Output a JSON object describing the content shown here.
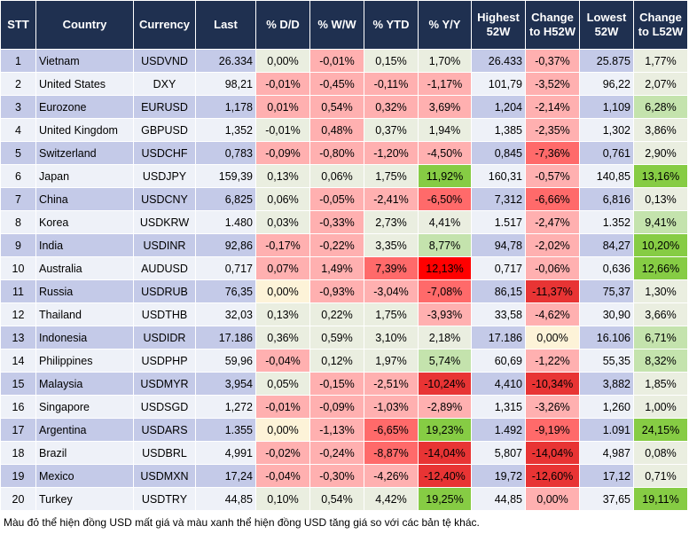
{
  "headers": [
    "STT",
    "Country",
    "Currency",
    "Last",
    "% D/D",
    "% W/W",
    "% YTD",
    "% Y/Y",
    "Highest 52W",
    "Change to H52W",
    "Lowest 52W",
    "Change to L52W"
  ],
  "colors": {
    "header": "#1f3050",
    "row_odd": "#c4cae8",
    "row_even": "#eef1f8",
    "neutral": "#eaeee0",
    "light_red": "#ffb0b0",
    "mid_red": "#ff6a6a",
    "red": "#ff0000",
    "dark_red": "#e83434",
    "light_green": "#c4e3ad",
    "green": "#86cc44",
    "light_yellow": "#fdf3d8"
  },
  "rows": [
    [
      "1",
      "Vietnam",
      "USDVND",
      "26.334",
      "0,00%",
      "-0,01%",
      "0,15%",
      "1,70%",
      "26.433",
      "-0,37%",
      "25.875",
      "1,77%"
    ],
    [
      "2",
      "United States",
      "DXY",
      "98,21",
      "-0,01%",
      "-0,45%",
      "-0,11%",
      "-1,17%",
      "101,79",
      "-3,52%",
      "96,22",
      "2,07%"
    ],
    [
      "3",
      "Eurozone",
      "EURUSD",
      "1,178",
      "0,01%",
      "0,54%",
      "0,32%",
      "3,69%",
      "1,204",
      "-2,14%",
      "1,109",
      "6,28%"
    ],
    [
      "4",
      "United Kingdom",
      "GBPUSD",
      "1,352",
      "-0,01%",
      "0,48%",
      "0,37%",
      "1,94%",
      "1,385",
      "-2,35%",
      "1,302",
      "3,86%"
    ],
    [
      "5",
      "Switzerland",
      "USDCHF",
      "0,783",
      "-0,09%",
      "-0,80%",
      "-1,20%",
      "-4,50%",
      "0,845",
      "-7,36%",
      "0,761",
      "2,90%"
    ],
    [
      "6",
      "Japan",
      "USDJPY",
      "159,39",
      "0,13%",
      "0,06%",
      "1,75%",
      "11,92%",
      "160,31",
      "-0,57%",
      "140,85",
      "13,16%"
    ],
    [
      "7",
      "China",
      "USDCNY",
      "6,825",
      "0,06%",
      "-0,05%",
      "-2,41%",
      "-6,50%",
      "7,312",
      "-6,66%",
      "6,816",
      "0,13%"
    ],
    [
      "8",
      "Korea",
      "USDKRW",
      "1.480",
      "0,03%",
      "-0,33%",
      "2,73%",
      "4,41%",
      "1.517",
      "-2,47%",
      "1.352",
      "9,41%"
    ],
    [
      "9",
      "India",
      "USDINR",
      "92,86",
      "-0,17%",
      "-0,22%",
      "3,35%",
      "8,77%",
      "94,78",
      "-2,02%",
      "84,27",
      "10,20%"
    ],
    [
      "10",
      "Australia",
      "AUDUSD",
      "0,717",
      "0,07%",
      "1,49%",
      "7,39%",
      "12,13%",
      "0,717",
      "-0,06%",
      "0,636",
      "12,66%"
    ],
    [
      "11",
      "Russia",
      "USDRUB",
      "76,35",
      "0,00%",
      "-0,93%",
      "-3,04%",
      "-7,08%",
      "86,15",
      "-11,37%",
      "75,37",
      "1,30%"
    ],
    [
      "12",
      "Thailand",
      "USDTHB",
      "32,03",
      "0,13%",
      "0,22%",
      "1,75%",
      "-3,93%",
      "33,58",
      "-4,62%",
      "30,90",
      "3,66%"
    ],
    [
      "13",
      "Indonesia",
      "USDIDR",
      "17.186",
      "0,36%",
      "0,59%",
      "3,10%",
      "2,18%",
      "17.186",
      "0,00%",
      "16.106",
      "6,71%"
    ],
    [
      "14",
      "Philippines",
      "USDPHP",
      "59,96",
      "-0,04%",
      "0,12%",
      "1,97%",
      "5,74%",
      "60,69",
      "-1,22%",
      "55,35",
      "8,32%"
    ],
    [
      "15",
      "Malaysia",
      "USDMYR",
      "3,954",
      "0,05%",
      "-0,15%",
      "-2,51%",
      "-10,24%",
      "4,410",
      "-10,34%",
      "3,882",
      "1,85%"
    ],
    [
      "16",
      "Singapore",
      "USDSGD",
      "1,272",
      "-0,01%",
      "-0,09%",
      "-1,03%",
      "-2,89%",
      "1,315",
      "-3,26%",
      "1,260",
      "1,00%"
    ],
    [
      "17",
      "Argentina",
      "USDARS",
      "1.355",
      "0,00%",
      "-1,13%",
      "-6,65%",
      "19,23%",
      "1.492",
      "-9,19%",
      "1.091",
      "24,15%"
    ],
    [
      "18",
      "Brazil",
      "USDBRL",
      "4,991",
      "-0,02%",
      "-0,24%",
      "-8,87%",
      "-14,04%",
      "5,807",
      "-14,04%",
      "4,987",
      "0,08%"
    ],
    [
      "19",
      "Mexico",
      "USDMXN",
      "17,24",
      "-0,04%",
      "-0,30%",
      "-4,26%",
      "-12,40%",
      "19,72",
      "-12,60%",
      "17,12",
      "0,71%"
    ],
    [
      "20",
      "Turkey",
      "USDTRY",
      "44,85",
      "0,10%",
      "0,54%",
      "4,42%",
      "19,25%",
      "44,85",
      "0,00%",
      "37,65",
      "19,11%"
    ]
  ],
  "cell_shades": [
    [
      "n",
      "r1",
      "n",
      "n",
      "r1",
      "n"
    ],
    [
      "r1",
      "r1",
      "r1",
      "r1",
      "r1",
      "n"
    ],
    [
      "r1",
      "r1",
      "r1",
      "r1",
      "r1",
      "g1"
    ],
    [
      "n",
      "r1",
      "n",
      "n",
      "r1",
      "n"
    ],
    [
      "r1",
      "r1",
      "r1",
      "r1",
      "r2",
      "n"
    ],
    [
      "n",
      "n",
      "n",
      "g2",
      "r1",
      "g2"
    ],
    [
      "n",
      "r1",
      "r1",
      "r2",
      "r2",
      "n"
    ],
    [
      "n",
      "r1",
      "n",
      "n",
      "r1",
      "g1"
    ],
    [
      "r1",
      "r1",
      "n",
      "g1",
      "r1",
      "g2"
    ],
    [
      "r1",
      "r1",
      "r2",
      "r3",
      "r1",
      "g2"
    ],
    [
      "y",
      "r1",
      "r1",
      "r2",
      "rd",
      "n"
    ],
    [
      "n",
      "n",
      "n",
      "r1",
      "r1",
      "n"
    ],
    [
      "n",
      "n",
      "n",
      "n",
      "y",
      "g1"
    ],
    [
      "r1",
      "n",
      "n",
      "g1",
      "r1",
      "g1"
    ],
    [
      "n",
      "r1",
      "r1",
      "rd",
      "rd",
      "n"
    ],
    [
      "r1",
      "r1",
      "r1",
      "r1",
      "r1",
      "n"
    ],
    [
      "y",
      "r1",
      "r2",
      "g2",
      "r2",
      "g2"
    ],
    [
      "r1",
      "r1",
      "r2",
      "rd",
      "rd",
      "n"
    ],
    [
      "r1",
      "r1",
      "r1",
      "rd",
      "rd",
      "n"
    ],
    [
      "n",
      "n",
      "n",
      "g2",
      "r1",
      "g2"
    ]
  ],
  "note": "Màu đỏ thể hiện đồng USD mất giá và màu xanh thể hiện đồng USD tăng giá so với các bản tệ khác."
}
